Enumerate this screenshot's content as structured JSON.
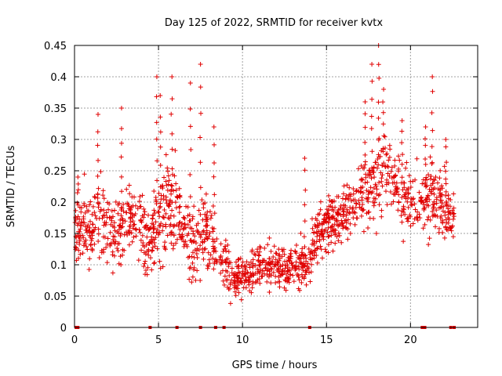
{
  "chart_data": {
    "type": "scatter",
    "title": "Day 125 of 2022, SRMTID for receiver kvtx",
    "xlabel": "GPS time / hours",
    "ylabel": "SRMTID / TECUs",
    "xlim": [
      0,
      24
    ],
    "ylim": [
      0,
      0.45
    ],
    "xticks": [
      0,
      5,
      10,
      15,
      20
    ],
    "xtick_labels": [
      "0",
      "5",
      "10",
      "15",
      "20"
    ],
    "yticks": [
      0,
      0.05,
      0.1,
      0.15,
      0.2,
      0.25,
      0.3,
      0.35,
      0.4,
      0.45
    ],
    "ytick_labels": [
      "0",
      "0.05",
      "0.1",
      "0.15",
      "0.2",
      "0.25",
      "0.3",
      "0.35",
      "0.4",
      "0.45"
    ],
    "grid": true,
    "marker": "+",
    "color": "#e00000",
    "series": [
      {
        "name": "SRMTID",
        "envelope_hours": [
          0,
          0.5,
          1,
          1.5,
          2,
          2.5,
          3,
          3.5,
          4,
          4.5,
          5,
          5.5,
          6,
          6.5,
          7,
          7.5,
          8,
          8.5,
          9,
          9.5,
          10,
          10.5,
          11,
          11.5,
          12,
          12.5,
          13,
          13.5,
          14,
          14.5,
          15,
          15.5,
          16,
          16.5,
          17,
          17.5,
          18,
          18.5,
          19,
          19.5,
          20,
          20.5,
          21,
          21.5,
          22,
          22.5
        ],
        "median": [
          0.15,
          0.16,
          0.15,
          0.17,
          0.16,
          0.15,
          0.17,
          0.18,
          0.16,
          0.13,
          0.17,
          0.2,
          0.19,
          0.15,
          0.13,
          0.14,
          0.15,
          0.12,
          0.1,
          0.08,
          0.08,
          0.09,
          0.1,
          0.1,
          0.1,
          0.09,
          0.1,
          0.1,
          0.11,
          0.15,
          0.17,
          0.16,
          0.18,
          0.2,
          0.21,
          0.22,
          0.24,
          0.25,
          0.23,
          0.21,
          0.2,
          0.2,
          0.21,
          0.2,
          0.19,
          0.18
        ],
        "spread": [
          0.06,
          0.06,
          0.07,
          0.07,
          0.05,
          0.06,
          0.06,
          0.06,
          0.06,
          0.05,
          0.07,
          0.07,
          0.07,
          0.06,
          0.06,
          0.07,
          0.06,
          0.05,
          0.04,
          0.03,
          0.03,
          0.035,
          0.035,
          0.035,
          0.035,
          0.035,
          0.035,
          0.04,
          0.04,
          0.05,
          0.05,
          0.05,
          0.05,
          0.05,
          0.05,
          0.06,
          0.07,
          0.07,
          0.06,
          0.06,
          0.05,
          0.05,
          0.06,
          0.06,
          0.05,
          0.05
        ],
        "peaks": [
          [
            0.2,
            0.24
          ],
          [
            1.4,
            0.34
          ],
          [
            2.8,
            0.35
          ],
          [
            4.9,
            0.4
          ],
          [
            5.1,
            0.37
          ],
          [
            5.8,
            0.4
          ],
          [
            6.9,
            0.39
          ],
          [
            7.5,
            0.42
          ],
          [
            8.3,
            0.32
          ],
          [
            13.7,
            0.27
          ],
          [
            17.3,
            0.36
          ],
          [
            17.7,
            0.42
          ],
          [
            18.1,
            0.45
          ],
          [
            18.4,
            0.38
          ],
          [
            19.5,
            0.33
          ],
          [
            20.9,
            0.32
          ],
          [
            21.3,
            0.4
          ],
          [
            22.1,
            0.3
          ]
        ],
        "zero_hours": [
          0.1,
          0.2,
          4.5,
          6.1,
          7.5,
          8.4,
          8.9,
          14.0,
          20.7,
          20.85,
          22.4,
          22.6
        ]
      }
    ]
  }
}
